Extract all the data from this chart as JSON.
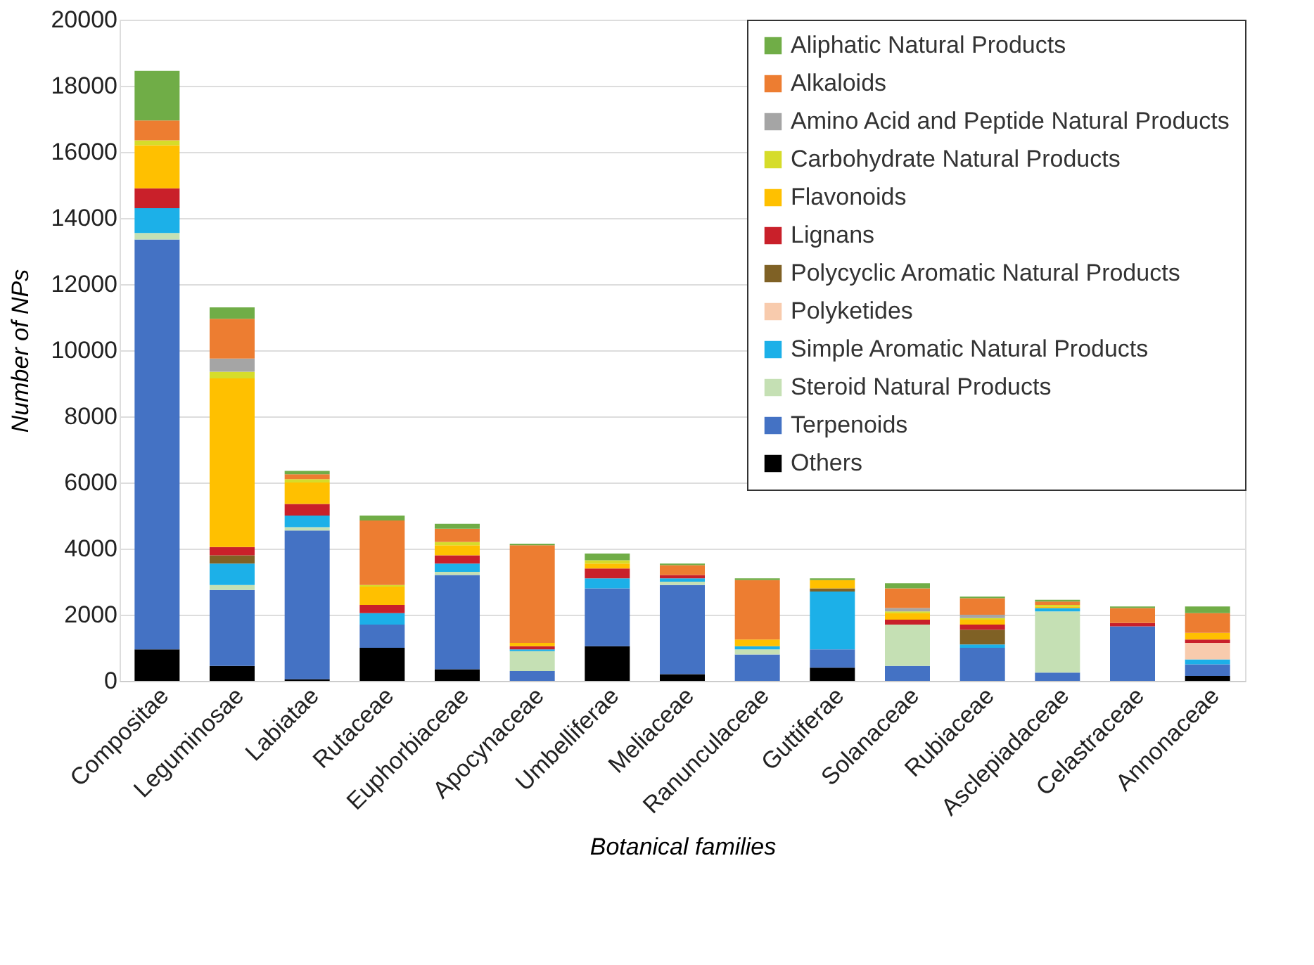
{
  "chart_data": {
    "type": "bar",
    "stacked": true,
    "xlabel": "Botanical families",
    "ylabel": "Number of NPs",
    "categories": [
      "Compositae",
      "Leguminosae",
      "Labiatae",
      "Rutaceae",
      "Euphorbiaceae",
      "Apocynaceae",
      "Umbelliferae",
      "Meliaceae",
      "Ranunculaceae",
      "Guttiferae",
      "Solanaceae",
      "Rubiaceae",
      "Asclepiadaceae",
      "Celastraceae",
      "Annonaceae"
    ],
    "ylim": [
      0,
      20000
    ],
    "yticks": [
      0,
      2000,
      4000,
      6000,
      8000,
      10000,
      12000,
      14000,
      16000,
      18000,
      20000
    ],
    "grid": "y",
    "legend": "top right",
    "series": [
      {
        "name": "Others",
        "color": "#000000",
        "values": [
          950,
          450,
          50,
          1000,
          350,
          null,
          1050,
          200,
          null,
          400,
          null,
          null,
          null,
          null,
          150
        ]
      },
      {
        "name": "Terpenoids",
        "color": "#4472c4",
        "values": [
          12400,
          2300,
          4500,
          700,
          2850,
          300,
          1750,
          2700,
          800,
          550,
          450,
          1000,
          250,
          1650,
          350
        ]
      },
      {
        "name": "Steroid Natural Products",
        "color": "#c5e0b4",
        "values": [
          200,
          150,
          100,
          null,
          100,
          600,
          null,
          100,
          150,
          null,
          1250,
          null,
          1850,
          null,
          null
        ]
      },
      {
        "name": "Simple Aromatic Natural Products",
        "color": "#1cb0e8",
        "values": [
          750,
          650,
          350,
          350,
          250,
          50,
          300,
          100,
          100,
          1750,
          null,
          100,
          100,
          null,
          150
        ]
      },
      {
        "name": "Polyketides",
        "color": "#f8cbad",
        "values": [
          null,
          null,
          null,
          null,
          null,
          null,
          null,
          null,
          null,
          null,
          null,
          null,
          null,
          null,
          500
        ]
      },
      {
        "name": "Polycyclic Aromatic Natural Products",
        "color": "#7f6125",
        "values": [
          null,
          250,
          null,
          null,
          null,
          null,
          null,
          null,
          null,
          100,
          null,
          450,
          null,
          null,
          null
        ]
      },
      {
        "name": "Lignans",
        "color": "#c9202a",
        "values": [
          600,
          250,
          350,
          250,
          250,
          100,
          300,
          100,
          null,
          null,
          150,
          150,
          null,
          100,
          100
        ]
      },
      {
        "name": "Flavonoids",
        "color": "#ffc000",
        "values": [
          1300,
          5100,
          650,
          550,
          300,
          100,
          150,
          null,
          200,
          250,
          200,
          150,
          50,
          null,
          200
        ]
      },
      {
        "name": "Carbohydrate Natural Products",
        "color": "#d6dc2a",
        "values": [
          150,
          200,
          100,
          50,
          100,
          null,
          100,
          null,
          null,
          null,
          50,
          50,
          50,
          null,
          null
        ]
      },
      {
        "name": "Amino Acid and Peptide Natural Products",
        "color": "#a5a5a5",
        "values": [
          null,
          400,
          null,
          null,
          null,
          null,
          null,
          null,
          null,
          null,
          100,
          100,
          null,
          null,
          null
        ]
      },
      {
        "name": "Alkaloids",
        "color": "#ed7d31",
        "values": [
          600,
          1200,
          150,
          1950,
          400,
          2950,
          null,
          300,
          1800,
          null,
          600,
          500,
          100,
          450,
          600
        ]
      },
      {
        "name": "Aliphatic Natural Products",
        "color": "#70ad47",
        "values": [
          1500,
          350,
          100,
          150,
          150,
          50,
          200,
          50,
          50,
          50,
          150,
          50,
          50,
          50,
          200
        ]
      }
    ]
  }
}
